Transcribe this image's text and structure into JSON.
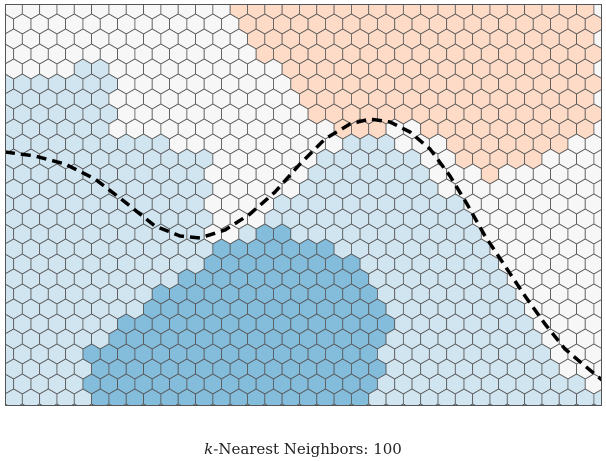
{
  "caption": {
    "k_symbol": "k",
    "text": "-Nearest Neighbors: 100"
  },
  "classes": {
    "deep_blue": "#84bcdb",
    "light_blue": "#d1e5f0",
    "white": "#f7f7f7",
    "orange": "#fddbc7"
  },
  "hex_stroke": "#555555",
  "boundary": {
    "style": "dashed",
    "color": "#000000"
  }
}
